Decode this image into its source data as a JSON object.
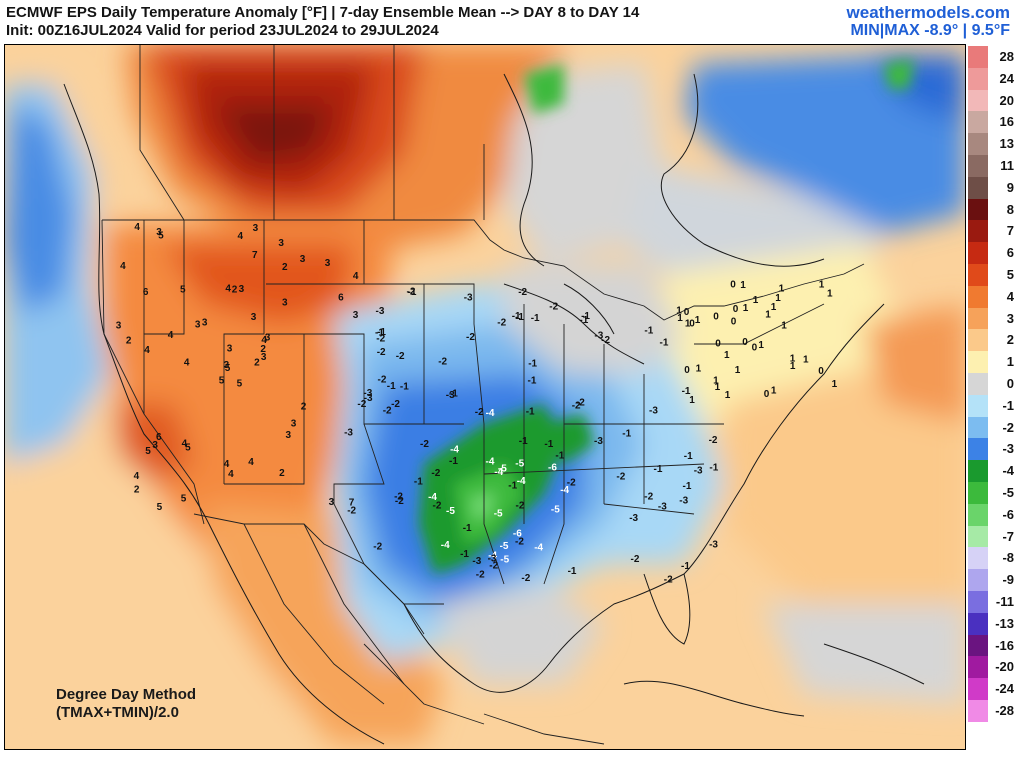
{
  "header": {
    "title": "ECMWF EPS Daily Temperature Anomaly [°F] | 7-day Ensemble Mean --> DAY 8 to DAY 14",
    "init_line": "Init: 00Z16JUL2024 Valid for period 23JUL2024 to 29JUL2024",
    "brand": "weathermodels.com",
    "minmax": "MIN|MAX -8.9° | 9.5°F"
  },
  "method": {
    "line1": "Degree Day Method",
    "line2": "(TMAX+TMIN)/2.0"
  },
  "legend": [
    {
      "label": "28",
      "color": "#e97a7a"
    },
    {
      "label": "24",
      "color": "#ee9a9a"
    },
    {
      "label": "20",
      "color": "#f2b8b8"
    },
    {
      "label": "16",
      "color": "#c9a8a0"
    },
    {
      "label": "13",
      "color": "#a8887f"
    },
    {
      "label": "11",
      "color": "#8a6a62"
    },
    {
      "label": "9",
      "color": "#6e4e47"
    },
    {
      "label": "8",
      "color": "#6a1010"
    },
    {
      "label": "7",
      "color": "#9a1a10"
    },
    {
      "label": "6",
      "color": "#c62a12"
    },
    {
      "label": "5",
      "color": "#e04a1a"
    },
    {
      "label": "4",
      "color": "#f07a30"
    },
    {
      "label": "3",
      "color": "#f6a25a"
    },
    {
      "label": "2",
      "color": "#fbc98a"
    },
    {
      "label": "1",
      "color": "#fdf0b0"
    },
    {
      "label": "0",
      "color": "#d6d6d6"
    },
    {
      "label": "-1",
      "color": "#b4e2f8"
    },
    {
      "label": "-2",
      "color": "#7cbcf0"
    },
    {
      "label": "-3",
      "color": "#3c82e6"
    },
    {
      "label": "-4",
      "color": "#1a9a2e"
    },
    {
      "label": "-5",
      "color": "#3cba3c"
    },
    {
      "label": "-6",
      "color": "#6ad46a"
    },
    {
      "label": "-7",
      "color": "#a6eaa6"
    },
    {
      "label": "-8",
      "color": "#d6d2f6"
    },
    {
      "label": "-9",
      "color": "#aea6ee"
    },
    {
      "label": "-11",
      "color": "#7a6ee0"
    },
    {
      "label": "-13",
      "color": "#4a30c0"
    },
    {
      "label": "-16",
      "color": "#6a1480"
    },
    {
      "label": "-20",
      "color": "#a01aa0"
    },
    {
      "label": "-24",
      "color": "#d03ac8"
    },
    {
      "label": "-28",
      "color": "#f08ae6"
    }
  ],
  "regions": [
    {
      "name": "north-central-canada",
      "anomaly": "7"
    },
    {
      "name": "central-plains-texas",
      "anomaly": "-5"
    },
    {
      "name": "southwest-us",
      "anomaly": "6"
    },
    {
      "name": "ohio-valley",
      "anomaly": "-3"
    },
    {
      "name": "northeast-us",
      "anomaly": "1"
    }
  ],
  "labels": [
    {
      "v": "5"
    },
    {
      "v": "6"
    },
    {
      "v": "5"
    },
    {
      "v": "4"
    },
    {
      "v": "4"
    },
    {
      "v": "5"
    },
    {
      "v": "3"
    },
    {
      "v": "3"
    },
    {
      "v": "2"
    },
    {
      "v": "2"
    },
    {
      "v": "5"
    },
    {
      "v": "7"
    },
    {
      "v": "4"
    },
    {
      "v": "4"
    },
    {
      "v": "5"
    },
    {
      "v": "3"
    },
    {
      "v": "5"
    },
    {
      "v": "4"
    },
    {
      "v": "3"
    },
    {
      "v": "3"
    },
    {
      "v": "3"
    },
    {
      "v": "2"
    },
    {
      "v": "1"
    },
    {
      "v": "2"
    },
    {
      "v": "3"
    },
    {
      "v": "1"
    },
    {
      "v": "-2"
    },
    {
      "v": "-1"
    },
    {
      "v": "2"
    },
    {
      "v": "1"
    },
    {
      "v": "3"
    },
    {
      "v": "3"
    },
    {
      "v": "4"
    },
    {
      "v": "3"
    },
    {
      "v": "5"
    },
    {
      "v": "3"
    },
    {
      "v": "4"
    },
    {
      "v": "3"
    },
    {
      "v": "1"
    },
    {
      "v": "2"
    },
    {
      "v": "3"
    },
    {
      "v": "3"
    },
    {
      "v": "4"
    },
    {
      "v": "3"
    },
    {
      "v": "5"
    },
    {
      "v": "3"
    },
    {
      "v": "2"
    },
    {
      "v": "1"
    },
    {
      "v": "4"
    },
    {
      "v": "3"
    },
    {
      "v": "5"
    },
    {
      "v": "6"
    },
    {
      "v": "4"
    },
    {
      "v": "3"
    },
    {
      "v": "2"
    },
    {
      "v": "1"
    },
    {
      "v": "3"
    },
    {
      "v": "4"
    },
    {
      "v": "4"
    },
    {
      "v": "3"
    },
    {
      "v": "4"
    },
    {
      "v": "4"
    },
    {
      "v": "1"
    },
    {
      "v": "0"
    },
    {
      "v": "-1"
    },
    {
      "v": "-2"
    },
    {
      "v": "-1"
    },
    {
      "v": "-2"
    },
    {
      "v": "-1"
    },
    {
      "v": "-2"
    },
    {
      "v": "-2"
    },
    {
      "v": "-3"
    },
    {
      "v": "-2"
    },
    {
      "v": "-3"
    },
    {
      "v": "-2"
    },
    {
      "v": "-3"
    },
    {
      "v": "-4"
    },
    {
      "v": "-4"
    },
    {
      "v": "-4"
    },
    {
      "v": "-5"
    },
    {
      "v": "-5"
    },
    {
      "v": "-4"
    },
    {
      "v": "-4"
    },
    {
      "v": "-5"
    },
    {
      "v": "-4"
    },
    {
      "v": "-6"
    },
    {
      "v": "-5"
    },
    {
      "v": "-4"
    },
    {
      "v": "-5"
    },
    {
      "v": "-6"
    },
    {
      "v": "-4"
    },
    {
      "v": "-4"
    },
    {
      "v": "-5"
    },
    {
      "v": "-3"
    },
    {
      "v": "-4"
    },
    {
      "v": "-3"
    },
    {
      "v": "-3"
    },
    {
      "v": "-2"
    },
    {
      "v": "-3"
    },
    {
      "v": "-2"
    },
    {
      "v": "-2"
    },
    {
      "v": "-3"
    },
    {
      "v": "-2"
    },
    {
      "v": "-2"
    },
    {
      "v": "-1"
    },
    {
      "v": "-2"
    },
    {
      "v": "-1"
    },
    {
      "v": "-2"
    },
    {
      "v": "-1"
    },
    {
      "v": "-2"
    },
    {
      "v": "-1"
    },
    {
      "v": "-2"
    },
    {
      "v": "-1"
    },
    {
      "v": "0"
    },
    {
      "v": "0"
    },
    {
      "v": "0"
    },
    {
      "v": "0"
    },
    {
      "v": "1"
    },
    {
      "v": "1"
    },
    {
      "v": "1"
    },
    {
      "v": "1"
    },
    {
      "v": "1"
    },
    {
      "v": "1"
    },
    {
      "v": "0"
    },
    {
      "v": "-1"
    },
    {
      "v": "-2"
    },
    {
      "v": "-1"
    },
    {
      "v": "-2"
    },
    {
      "v": "-3"
    },
    {
      "v": "-2"
    },
    {
      "v": "-2"
    },
    {
      "v": "-1"
    },
    {
      "v": "-1"
    },
    {
      "v": "-2"
    },
    {
      "v": "-3"
    },
    {
      "v": "-2"
    },
    {
      "v": "-1"
    },
    {
      "v": "-2"
    },
    {
      "v": "-1"
    },
    {
      "v": "0"
    },
    {
      "v": "-1"
    },
    {
      "v": "-2"
    },
    {
      "v": "-3"
    },
    {
      "v": "-1"
    },
    {
      "v": "-2"
    },
    {
      "v": "-1"
    },
    {
      "v": "-3"
    },
    {
      "v": "-2"
    },
    {
      "v": "-2"
    },
    {
      "v": "-1"
    },
    {
      "v": "-1"
    },
    {
      "v": "-2"
    },
    {
      "v": "-3"
    },
    {
      "v": "-2"
    },
    {
      "v": "-1"
    },
    {
      "v": "-2"
    },
    {
      "v": "1"
    },
    {
      "v": "-1"
    },
    {
      "v": "0"
    },
    {
      "v": "1"
    },
    {
      "v": "-2"
    },
    {
      "v": "-1"
    },
    {
      "v": "-3"
    },
    {
      "v": "-2"
    },
    {
      "v": "-1"
    },
    {
      "v": "-2"
    },
    {
      "v": "-1"
    },
    {
      "v": "-3"
    },
    {
      "v": "-1"
    },
    {
      "v": "-2"
    },
    {
      "v": "0"
    },
    {
      "v": "1"
    },
    {
      "v": "1"
    },
    {
      "v": "1"
    },
    {
      "v": "1"
    },
    {
      "v": "1"
    },
    {
      "v": "1"
    },
    {
      "v": "1"
    },
    {
      "v": "1"
    },
    {
      "v": "1"
    },
    {
      "v": "0"
    },
    {
      "v": "1"
    },
    {
      "v": "0"
    },
    {
      "v": "0"
    },
    {
      "v": "-1"
    },
    {
      "v": "-1"
    },
    {
      "v": "-1"
    },
    {
      "v": "-2"
    },
    {
      "v": "-1"
    },
    {
      "v": "-1"
    },
    {
      "v": "-1"
    },
    {
      "v": "1"
    }
  ]
}
